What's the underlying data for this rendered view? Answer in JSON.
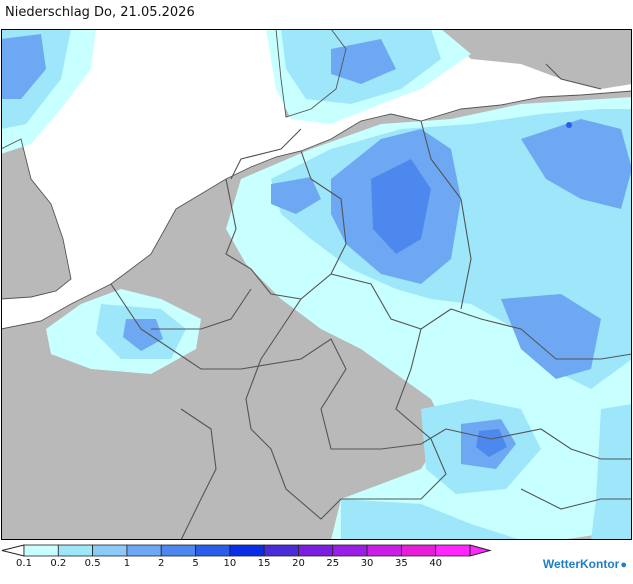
{
  "title": "Niederschlag Do, 21.05.2026",
  "legend": {
    "labels": [
      "0.1",
      "0.2",
      "0.5",
      "1",
      "2",
      "5",
      "10",
      "15",
      "20",
      "25",
      "30",
      "35",
      "40"
    ],
    "colors": [
      "#ffffff",
      "#c8ffff",
      "#9ee6fa",
      "#8ccaf8",
      "#6ea8f2",
      "#4d88ee",
      "#2a5ee8",
      "#0a2ee6",
      "#4b2ad8",
      "#7a1ee0",
      "#9a1ee6",
      "#c81ee6",
      "#e61ed8",
      "#ff26ff"
    ]
  },
  "colors": {
    "land": "#b9b9b9",
    "sea": "#ffffff",
    "borders": "#555555",
    "precip_light": "#c8ffff",
    "precip_mid": "#9ee6fa",
    "precip_heavy": "#6ea8f2"
  },
  "brand": {
    "name": "WetterKontor",
    "icon": "raindrop-icon"
  }
}
